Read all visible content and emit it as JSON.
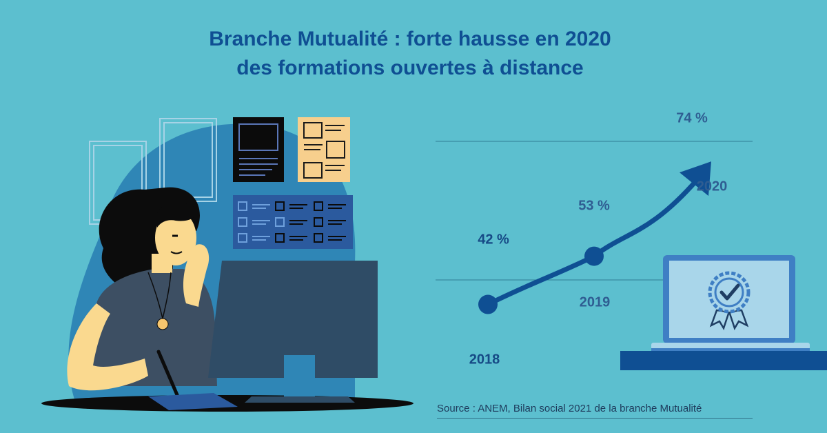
{
  "title": {
    "line1": "Branche Mutualité : forte hausse en 2020",
    "line2": "des formations ouvertes à distance"
  },
  "chart_data": {
    "type": "line",
    "x": [
      "2018",
      "2019",
      "2020"
    ],
    "values": [
      42,
      53,
      74
    ],
    "value_labels": [
      "42 %",
      "53 %",
      "74 %"
    ],
    "final_point_marker": "arrow",
    "grid": true,
    "ylim": [
      35,
      80
    ],
    "title": "",
    "xlabel": "",
    "ylabel": ""
  },
  "source": "Source : ANEM, Bilan social  2021 de la branche Mutualité",
  "colors": {
    "background": "#5cbfcf",
    "title": "#0f4f93",
    "line": "#0f4f93",
    "gridline": "#2f7d95",
    "laptop_screen": "#a9d6ea",
    "desk": "#0f4f93",
    "badge": "#3f7fc4"
  },
  "icons": [
    "woman-at-computer-illustration",
    "laptop-certificate-icon",
    "growth-arrow-icon"
  ]
}
